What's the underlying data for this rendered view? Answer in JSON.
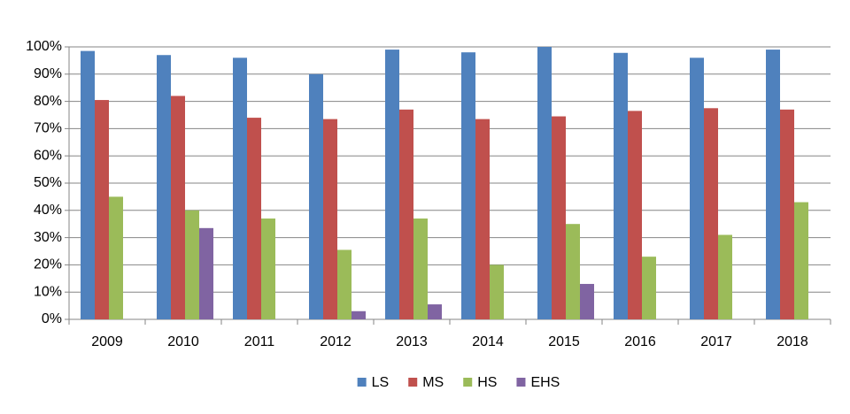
{
  "chart_data": {
    "type": "bar",
    "categories": [
      "2009",
      "2010",
      "2011",
      "2012",
      "2013",
      "2014",
      "2015",
      "2016",
      "2017",
      "2018"
    ],
    "series": [
      {
        "name": "LS",
        "color": "#4f81bd",
        "values": [
          98.5,
          97,
          96,
          90,
          99,
          98,
          100,
          97.8,
          96,
          99
        ]
      },
      {
        "name": "MS",
        "color": "#c0504d",
        "values": [
          80.5,
          82,
          74,
          73.5,
          77,
          73.5,
          74.5,
          76.5,
          77.5,
          77
        ]
      },
      {
        "name": "HS",
        "color": "#9bbb59",
        "values": [
          45,
          40,
          37,
          25.5,
          37,
          20,
          35,
          23,
          31,
          43
        ]
      },
      {
        "name": "EHS",
        "color": "#8064a2",
        "values": [
          null,
          33.5,
          null,
          3,
          5.5,
          null,
          13,
          null,
          null,
          null
        ]
      }
    ],
    "ylim": [
      0,
      100
    ],
    "yticks": [
      {
        "value": 0,
        "label": "0%"
      },
      {
        "value": 10,
        "label": "10%"
      },
      {
        "value": 20,
        "label": "20%"
      },
      {
        "value": 30,
        "label": "30%"
      },
      {
        "value": 40,
        "label": "40%"
      },
      {
        "value": 50,
        "label": "50%"
      },
      {
        "value": 60,
        "label": "60%"
      },
      {
        "value": 70,
        "label": "70%"
      },
      {
        "value": 80,
        "label": "80%"
      },
      {
        "value": 90,
        "label": "90%"
      },
      {
        "value": 100,
        "label": "100%"
      }
    ],
    "grid": true,
    "legend": "bottom"
  }
}
